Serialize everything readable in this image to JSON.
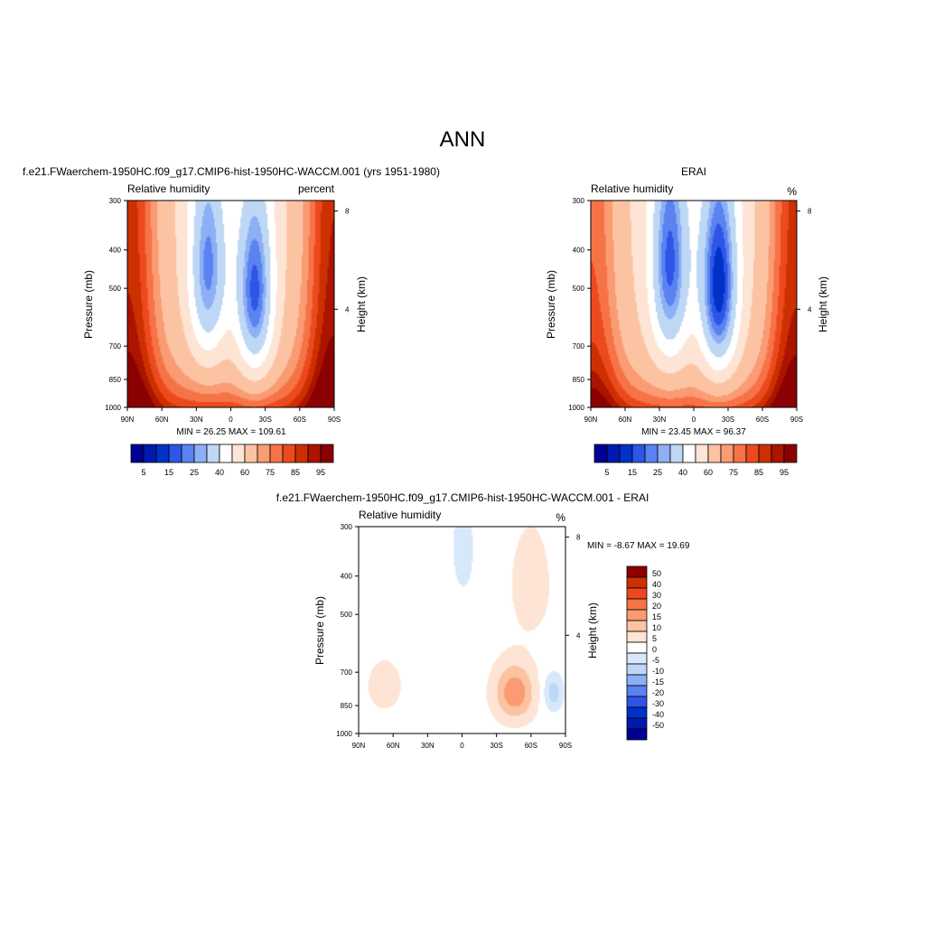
{
  "figure_title": "ANN",
  "colors": {
    "abs_scale": [
      "#000096",
      "#0019ae",
      "#0032c8",
      "#2d55e6",
      "#5a82f0",
      "#8caff5",
      "#bed7f5",
      "#ffffff",
      "#fde4d4",
      "#fcc3a3",
      "#fa9b73",
      "#f67346",
      "#ec4a1e",
      "#cd3000",
      "#aa1400",
      "#8b0000"
    ],
    "diff_scale": [
      "#000096",
      "#0019ae",
      "#0032c8",
      "#2d55e6",
      "#5a82f0",
      "#8caff5",
      "#bed7f5",
      "#d8e8fb",
      "#ffffff",
      "#fde4d4",
      "#fcc3a3",
      "#fa9b73",
      "#f67346",
      "#ec4a1e",
      "#cd3000",
      "#8b0000"
    ]
  },
  "chart_data": [
    {
      "type": "heatmap",
      "panel": "model",
      "title": "f.e21.FWaerchem-1950HC.f09_g17.CMIP6-hist-1950HC-WACCM.001 (yrs 1951-1980)",
      "left_label": "Relative humidity",
      "right_label": "percent",
      "ylabel": "Pressure (mb)",
      "ylabel_right": "Height (km)",
      "x_ticks": [
        "90N",
        "60N",
        "30N",
        "0",
        "30S",
        "60S",
        "90S"
      ],
      "y_ticks": [
        "300",
        "400",
        "500",
        "700",
        "850",
        "1000"
      ],
      "y_ticks_right": [
        "8",
        "4"
      ],
      "x_range": [
        90,
        -90
      ],
      "y_range_mb": [
        300,
        1000
      ],
      "stats_text": "MIN =  26.25  MAX = 109.61",
      "min": 26.25,
      "max": 109.61,
      "levels": [
        5,
        10,
        15,
        20,
        25,
        30,
        40,
        50,
        60,
        70,
        75,
        80,
        85,
        90,
        95
      ],
      "colorbar_labels": [
        "5",
        "15",
        "25",
        "40",
        "60",
        "75",
        "85",
        "95"
      ],
      "field_features": {
        "surface_mean": 84,
        "lower_decay_mb": 260,
        "upper_mean": 58,
        "dry_zones": [
          {
            "lat": 20,
            "p_mb": 450,
            "depth": 38,
            "lat_width": 12,
            "p_width_mb": 210
          },
          {
            "lat": -21,
            "p_mb": 520,
            "depth": 44,
            "lat_width": 12,
            "p_width_mb": 220
          }
        ],
        "polar_moist": {
          "north": 28,
          "south": 30
        }
      }
    },
    {
      "type": "heatmap",
      "panel": "obs",
      "title": "ERAI",
      "left_label": "Relative humidity",
      "right_label": "%",
      "ylabel": "Pressure (mb)",
      "ylabel_right": "Height (km)",
      "x_ticks": [
        "90N",
        "60N",
        "30N",
        "0",
        "30S",
        "60S",
        "90S"
      ],
      "y_ticks": [
        "300",
        "400",
        "500",
        "700",
        "850",
        "1000"
      ],
      "y_ticks_right": [
        "8",
        "4"
      ],
      "x_range": [
        90,
        -90
      ],
      "y_range_mb": [
        300,
        1000
      ],
      "stats_text": "MIN =  23.45  MAX =  96.37",
      "min": 23.45,
      "max": 96.37,
      "levels": [
        5,
        10,
        15,
        20,
        25,
        30,
        40,
        50,
        60,
        70,
        75,
        80,
        85,
        90,
        95
      ],
      "colorbar_labels": [
        "5",
        "15",
        "25",
        "40",
        "60",
        "75",
        "85",
        "95"
      ],
      "field_features": {
        "surface_mean": 82,
        "lower_decay_mb": 260,
        "upper_mean": 55,
        "dry_zones": [
          {
            "lat": 21,
            "p_mb": 440,
            "depth": 40,
            "lat_width": 12,
            "p_width_mb": 220
          },
          {
            "lat": -22,
            "p_mb": 500,
            "depth": 48,
            "lat_width": 12,
            "p_width_mb": 220
          }
        ],
        "polar_moist": {
          "north": 22,
          "south": 30
        }
      }
    },
    {
      "type": "heatmap",
      "panel": "difference",
      "title": "f.e21.FWaerchem-1950HC.f09_g17.CMIP6-hist-1950HC-WACCM.001 - ERAI",
      "left_label": "Relative humidity",
      "right_label": "%",
      "ylabel": "Pressure (mb)",
      "ylabel_right": "Height (km)",
      "x_ticks": [
        "90N",
        "60N",
        "30N",
        "0",
        "30S",
        "60S",
        "90S"
      ],
      "y_ticks": [
        "300",
        "400",
        "500",
        "700",
        "850",
        "1000"
      ],
      "y_ticks_right": [
        "8",
        "4"
      ],
      "x_range": [
        90,
        -90
      ],
      "y_range_mb": [
        300,
        1000
      ],
      "stats_text": "MIN =  -8.67  MAX =  19.69",
      "min": -8.67,
      "max": 19.69,
      "levels": [
        -50,
        -40,
        -30,
        -20,
        -15,
        -10,
        -5,
        0,
        5,
        10,
        15,
        20,
        30,
        40,
        50
      ],
      "colorbar_labels": [
        "50",
        "40",
        "30",
        "20",
        "15",
        "10",
        "5",
        "0",
        "-5",
        "-10",
        "-15",
        "-20",
        "-30",
        "-40",
        "-50"
      ],
      "field_features": {
        "background": 3,
        "positive_maxima": [
          {
            "lat": -46,
            "p_mb": 790,
            "value": 19
          },
          {
            "lat": -60,
            "p_mb": 420,
            "value": 8
          },
          {
            "lat": 68,
            "p_mb": 760,
            "value": 7
          }
        ],
        "negative_minima": [
          {
            "lat": -1,
            "p_mb": 340,
            "value": -5
          },
          {
            "lat": -80,
            "p_mb": 790,
            "value": -8
          }
        ]
      }
    }
  ]
}
